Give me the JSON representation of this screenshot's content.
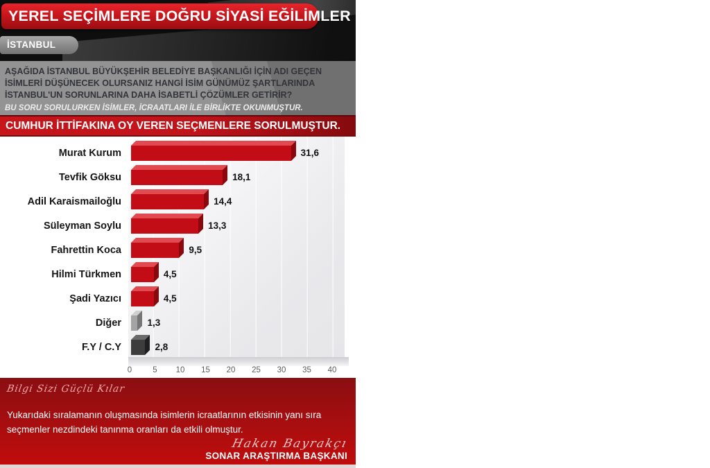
{
  "header": {
    "title": "YEREL SEÇİMLERE DOĞRU SİYASİ EĞİLİMLER",
    "region": "İSTANBUL"
  },
  "question": {
    "text": "AŞAĞIDA İSTANBUL BÜYÜKŞEHİR BELEDİYE BAŞKANLIĞI İÇİN ADI GEÇEN İSİMLERİ DÜŞÜNECEK OLURSANIZ HANGİ İSİM GÜNÜMÜZ ŞARTLARINDA İSTANBUL'UN SORUNLARINA DAHA İSABETLİ ÇÖZÜMLER GETİRİR?",
    "note": "BU SORU SORULURKEN İSİMLER, İCRAATLARI İLE BİRLİKTE OKUNMUŞTUR.",
    "audience": "CUMHUR İTTİFAKINA OY VEREN SEÇMENLERE SORULMUŞTUR."
  },
  "chart_data": {
    "type": "bar",
    "orientation": "horizontal",
    "title": "",
    "xlabel": "",
    "ylabel": "",
    "categories": [
      "Murat Kurum",
      "Tevfik Göksu",
      "Adil Karaismailoğlu",
      "Süleyman Soylu",
      "Fahrettin Koca",
      "Hilmi Türkmen",
      "Şadi Yazıcı",
      "Diğer",
      "F.Y / C.Y"
    ],
    "values": [
      31.6,
      18.1,
      14.4,
      13.3,
      9.5,
      4.5,
      4.5,
      1.3,
      2.8
    ],
    "value_labels": [
      "31,6",
      "18,1",
      "14,4",
      "13,3",
      "9,5",
      "4,5",
      "4,5",
      "1,3",
      "2,8"
    ],
    "bar_styles": [
      "red",
      "red",
      "red",
      "red",
      "red",
      "red",
      "red",
      "gray",
      "dark"
    ],
    "bar_palette": {
      "red": {
        "front": "#c30d16",
        "top": "#e04a50",
        "side": "#8a070d"
      },
      "gray": {
        "front": "#a3a3a3",
        "top": "#d0d0d0",
        "side": "#757575"
      },
      "dark": {
        "front": "#3d3d3d",
        "top": "#6a6a6a",
        "side": "#1f1f1f"
      }
    },
    "xlim": [
      0,
      40
    ],
    "x_ticks": [
      "0",
      "5",
      "10",
      "15",
      "20",
      "25",
      "30",
      "35",
      "40"
    ],
    "grid": true,
    "legend": false
  },
  "footer": {
    "slogan": "Bilgi Sizi Güçlü Kılar",
    "note": "Yukarıdaki sıralamanın oluşmasında isimlerin icraatlarının etkisinin yanı sıra seçmenler nezdindeki tanınma oranları da etkili olmuştur.",
    "signature": "Hakan Bayrakçı",
    "signature_title": "SONAR ARAŞTIRMA BAŞKANI"
  },
  "colors": {
    "banner_red": "#c4161c",
    "audience_red": "#c0131a",
    "footer_red_top": "#8a0e11",
    "footer_red_bottom": "#c00c0c",
    "question_gray": "#939393",
    "plot_gray": "#e9e9ec"
  }
}
